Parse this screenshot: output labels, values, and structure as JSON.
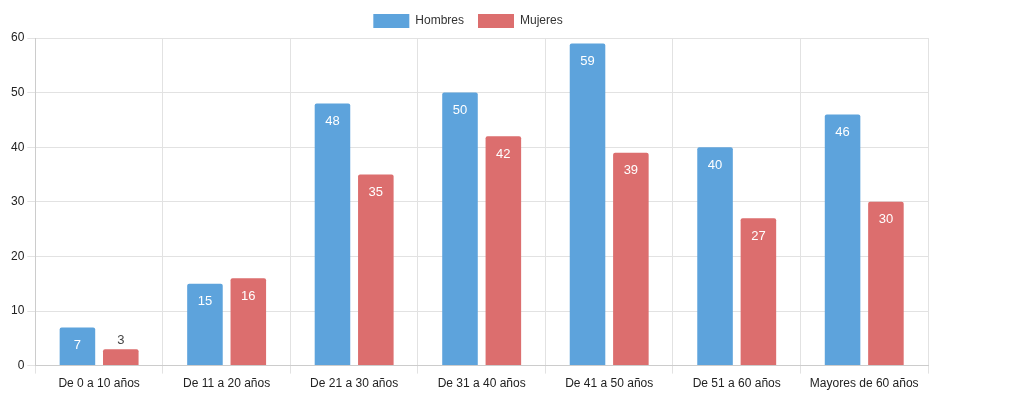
{
  "chart_data": {
    "type": "bar",
    "categories": [
      "De 0 a 10 años",
      "De 11 a 20 años",
      "De 21 a 30 años",
      "De 31 a 40 años",
      "De 41 a 50 años",
      "De 51 a 60 años",
      "Mayores de 60 años"
    ],
    "series": [
      {
        "name": "Hombres",
        "color": "#5da3dc",
        "values": [
          7,
          15,
          48,
          50,
          59,
          40,
          46
        ]
      },
      {
        "name": "Mujeres",
        "color": "#dc6e6e",
        "values": [
          3,
          16,
          35,
          42,
          39,
          27,
          30
        ]
      }
    ],
    "ylim": [
      0,
      60
    ],
    "yticks": [
      0,
      10,
      20,
      30,
      40,
      50,
      60
    ],
    "grid": true,
    "legend": "top",
    "data_labels": true
  }
}
